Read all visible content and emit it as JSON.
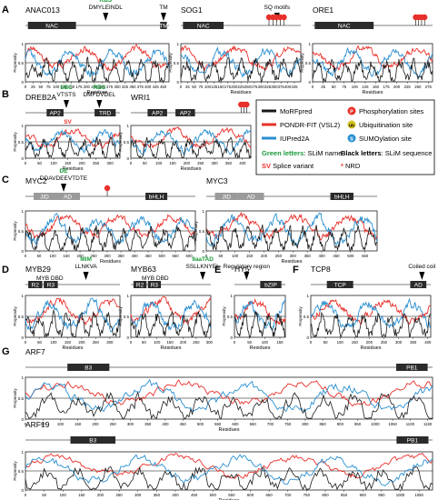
{
  "figure": {
    "colors": {
      "morf": "#1a1a1a",
      "pondr": "#e8302a",
      "iupred": "#2a8fd0",
      "phospho": "#e8302a",
      "ubiq": "#d4c21c",
      "sumo": "#2a8fd0",
      "slim_name": "#1a9a3a",
      "splice": "#e8302a",
      "domain_fill": "#2b2b2b",
      "domain_fill_light": "#9a9a9a"
    },
    "legend": {
      "morf": "MoRFpred",
      "pondr": "PONDR-FIT (VSL2)",
      "iupred": "IUPred2A",
      "phospho": "Phosphorylation sites",
      "ubiq": "Ubiquitination site",
      "sumo": "SUMOylation site",
      "slim_name": "Green letters",
      "slim_name_desc": ": SLiM name",
      "slim_seq": "Black letters",
      "slim_seq_desc": ": SLiM sequence",
      "sv": "SV",
      "sv_desc": " Splice variant",
      "nrd": "*",
      "nrd_desc": " NRD",
      "phospho_letter": "P",
      "ubiq_letter": "Ub",
      "sumo_letter": "S"
    },
    "panel_letters": [
      "A",
      "B",
      "C",
      "D",
      "E",
      "F",
      "G"
    ],
    "ylabel": "Propensity",
    "xlabel": "Residues"
  },
  "chart_data": [
    {
      "type": "line",
      "id": "ANAC013",
      "title": "ANAC013",
      "length": 469,
      "ylim": [
        0,
        1
      ],
      "xticks": [
        0,
        25,
        50,
        75,
        100,
        125,
        150,
        175,
        200,
        225,
        250,
        275,
        300,
        325,
        350,
        375,
        400,
        425,
        450
      ],
      "yticks": [
        "0",
        "0.5",
        "1"
      ],
      "xlabel": "Residues",
      "ylabel": "Propensity",
      "domains": [
        {
          "label": "NAC",
          "start": 8,
          "end": 165
        },
        {
          "label": "TM",
          "start": 440,
          "end": 462
        }
      ],
      "annotations": [
        {
          "name": "RBS",
          "seq": "DMYLEINDL",
          "pos": 262
        },
        {
          "name": "",
          "seq": "TM",
          "pos": 451
        }
      ],
      "series": [
        {
          "name": "PONDR-FIT (VSL2)",
          "profile": "ANAC013_pondr"
        },
        {
          "name": "IUPred2A",
          "profile": "ANAC013_iupred"
        },
        {
          "name": "MoRFpred",
          "profile": "ANAC013_morf"
        }
      ]
    },
    {
      "type": "line",
      "id": "SOG1",
      "title": "SOG1",
      "length": 449,
      "ylim": [
        0,
        1
      ],
      "xticks": [
        0,
        25,
        50,
        75,
        100,
        125,
        150,
        175,
        200,
        225,
        250,
        275,
        300,
        325,
        350,
        375,
        400,
        425
      ],
      "yticks": [
        "0",
        "0.5",
        "1"
      ],
      "xlabel": "Residues",
      "ylabel": "Propensity",
      "domains": [
        {
          "label": "NAC",
          "start": 8,
          "end": 160
        }
      ],
      "annotations": [
        {
          "name": "",
          "seq": "SQ motifs",
          "pos": 360
        }
      ],
      "phospho_sites": [
        330,
        345,
        358,
        372,
        386
      ]
    },
    {
      "type": "line",
      "id": "ORE1",
      "title": "ORE1",
      "length": 285,
      "ylim": [
        0,
        1
      ],
      "xticks": [
        0,
        25,
        50,
        75,
        100,
        125,
        150,
        175,
        200,
        225,
        250,
        275
      ],
      "yticks": [
        "0",
        "0.5",
        "1"
      ],
      "xlabel": "Residues",
      "ylabel": "Propensity",
      "domains": [
        {
          "label": "NAC",
          "start": 5,
          "end": 145
        }
      ],
      "phospho_sites": [
        245,
        252,
        259,
        266
      ]
    },
    {
      "type": "line",
      "id": "DREB2A",
      "title": "DREB2A",
      "length": 335,
      "ylim": [
        0,
        1
      ],
      "xticks": [
        0,
        50,
        100,
        150,
        200,
        250,
        300
      ],
      "yticks": [
        "0",
        "0.5",
        "1"
      ],
      "xlabel": "Residues",
      "ylabel": "Propensity",
      "domains": [
        {
          "label": "AP2",
          "start": 75,
          "end": 135
        },
        {
          "label": "TRD",
          "start": 245,
          "end": 320
        }
      ],
      "annotations": [
        {
          "name": "SBC",
          "seq": "VTSTS",
          "pos": 145
        },
        {
          "name": "RBS",
          "seq": "DMFDVDEL",
          "pos": 262
        }
      ],
      "splice_variant": {
        "label": "SV",
        "pos": 150
      }
    },
    {
      "type": "line",
      "id": "WRI1",
      "title": "WRI1",
      "length": 430,
      "ylim": [
        0,
        1
      ],
      "xticks": [
        0,
        50,
        100,
        150,
        200,
        250,
        300,
        350,
        400
      ],
      "yticks": [
        "0",
        "0.5",
        "1"
      ],
      "xlabel": "Residues",
      "ylabel": "Propensity",
      "domains": [
        {
          "label": "AP2",
          "start": 60,
          "end": 130
        },
        {
          "label": "AP2",
          "start": 160,
          "end": 230
        }
      ],
      "phospho_sites": [
        395,
        405,
        415
      ]
    },
    {
      "type": "line",
      "id": "MYC2",
      "title": "MYC2",
      "length": 623,
      "ylim": [
        0,
        1
      ],
      "xticks": [
        0,
        50,
        100,
        150,
        200,
        250,
        300,
        350,
        400,
        450,
        500,
        550,
        600
      ],
      "yticks": [
        "0",
        "0.5",
        "1"
      ],
      "xlabel": "Residues",
      "ylabel": "Propensity",
      "domains": [
        {
          "label": "JID",
          "start": 30,
          "end": 110
        },
        {
          "label": "AD",
          "start": 110,
          "end": 200
        },
        {
          "label": "bHLH",
          "start": 440,
          "end": 520
        }
      ],
      "annotations": [
        {
          "name": "DE",
          "seq": "DDAVDEEVTDTE",
          "pos": 140
        }
      ],
      "phospho_sites": [
        300
      ]
    },
    {
      "type": "line",
      "id": "MYC3",
      "title": "MYC3",
      "length": 592,
      "ylim": [
        0,
        1
      ],
      "xticks": [
        0,
        50,
        100,
        150,
        200,
        250,
        300,
        350,
        400,
        450,
        500,
        550
      ],
      "yticks": [
        "0",
        "0.5",
        "1"
      ],
      "xlabel": "Residues",
      "ylabel": "Propensity",
      "domains": [
        {
          "label": "JID",
          "start": 30,
          "end": 110
        },
        {
          "label": "AD",
          "start": 110,
          "end": 200
        },
        {
          "label": "bHLH",
          "start": 430,
          "end": 510
        }
      ]
    },
    {
      "type": "line",
      "id": "MYB29",
      "title": "MYB29",
      "subtitle": "MYB DBD",
      "length": 336,
      "ylim": [
        0,
        1
      ],
      "xticks": [
        0,
        50,
        100,
        150,
        200,
        250,
        300
      ],
      "yticks": [
        "0",
        "0.5",
        "1"
      ],
      "xlabel": "Residues",
      "ylabel": "Propensity",
      "domains": [
        {
          "label": "R2",
          "start": 10,
          "end": 60
        },
        {
          "label": "R3",
          "start": 65,
          "end": 115
        }
      ],
      "annotations": [
        {
          "name": "MIM",
          "seq": "LLNKVA",
          "pos": 215
        }
      ]
    },
    {
      "type": "line",
      "id": "MYB63",
      "title": "MYB63",
      "subtitle": "MYB DBD",
      "length": 306,
      "ylim": [
        0,
        1
      ],
      "xticks": [
        0,
        50,
        100,
        150,
        200,
        250,
        300
      ],
      "yticks": [
        "0",
        "0.5",
        "1"
      ],
      "xlabel": "Residues",
      "ylabel": "Propensity",
      "domains": [
        {
          "label": "R2",
          "start": 10,
          "end": 60
        },
        {
          "label": "R3",
          "start": 65,
          "end": 115
        }
      ],
      "annotations": [
        {
          "name": "9aaTAD",
          "seq": "SSLLKNYEL",
          "pos": 275
        }
      ]
    },
    {
      "type": "line",
      "id": "HY5",
      "title": "HY5",
      "length": 168,
      "ylim": [
        0,
        1
      ],
      "xticks": [
        0,
        50,
        100,
        150
      ],
      "yticks": [
        "0",
        "0.5",
        "1"
      ],
      "xlabel": "Residues",
      "ylabel": "Propensity",
      "domains": [
        {
          "label": "bZIP",
          "start": 85,
          "end": 155
        }
      ],
      "annotations": [
        {
          "name": "",
          "seq": "Regulatory region",
          "pos": 40
        }
      ]
    },
    {
      "type": "line",
      "id": "TCP8",
      "title": "TCP8",
      "length": 410,
      "ylim": [
        0,
        1
      ],
      "xticks": [
        0,
        50,
        100,
        150,
        200,
        250,
        300,
        350,
        400
      ],
      "yticks": [
        "0",
        "0.5",
        "1"
      ],
      "xlabel": "Residues",
      "ylabel": "Propensity",
      "domains": [
        {
          "label": "TCP",
          "start": 55,
          "end": 145
        },
        {
          "label": "AD",
          "start": 340,
          "end": 395
        }
      ],
      "annotations": [
        {
          "name": "",
          "seq": "Coiled coil",
          "pos": 380
        }
      ]
    },
    {
      "type": "line",
      "id": "ARF7",
      "title": "ARF7",
      "length": 1164,
      "ylim": [
        0,
        1
      ],
      "xticks": [
        0,
        50,
        100,
        150,
        200,
        250,
        300,
        350,
        400,
        450,
        500,
        550,
        600,
        650,
        700,
        750,
        800,
        850,
        900,
        950,
        1000,
        1050,
        1100,
        1150
      ],
      "yticks": [
        "0",
        "0.5",
        "1"
      ],
      "xlabel": "Residues",
      "ylabel": "Propensity",
      "domains": [
        {
          "label": "B3",
          "start": 120,
          "end": 240
        },
        {
          "label": "PB1",
          "start": 1060,
          "end": 1150
        }
      ]
    },
    {
      "type": "line",
      "id": "ARF19",
      "title": "ARF19",
      "length": 1086,
      "ylim": [
        0,
        1
      ],
      "xticks": [
        0,
        50,
        100,
        150,
        200,
        250,
        300,
        350,
        400,
        450,
        500,
        550,
        600,
        650,
        700,
        750,
        800,
        850,
        900,
        950,
        1000,
        1050
      ],
      "yticks": [
        "0",
        "0.5",
        "1"
      ],
      "xlabel": "Residues",
      "ylabel": "Propensity",
      "domains": [
        {
          "label": "B3",
          "start": 120,
          "end": 240
        },
        {
          "label": "PB1",
          "start": 990,
          "end": 1075
        }
      ]
    }
  ]
}
